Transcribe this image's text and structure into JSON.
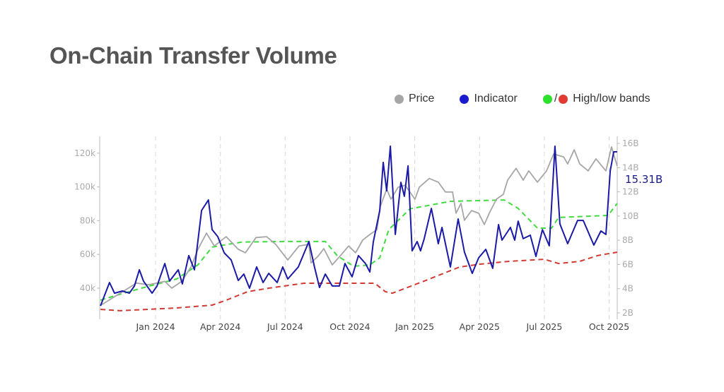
{
  "chart_data": {
    "type": "line",
    "title": "On-Chain Transfer Volume",
    "x_unit": "months since Jan 2024",
    "x_range": [
      -2.6,
      21.4
    ],
    "x_ticks": [
      {
        "t": 0,
        "label": "Jan 2024"
      },
      {
        "t": 3,
        "label": "Apr 2024"
      },
      {
        "t": 6,
        "label": "Jul 2024"
      },
      {
        "t": 9,
        "label": "Oct 2024"
      },
      {
        "t": 12,
        "label": "Jan 2025"
      },
      {
        "t": 15,
        "label": "Apr 2025"
      },
      {
        "t": 18,
        "label": "Jul 2025"
      },
      {
        "t": 21,
        "label": "Oct 2025"
      }
    ],
    "left_axis": {
      "unit": "USD",
      "range": [
        22,
        130
      ],
      "ticks": [
        {
          "v": 40,
          "label": "40k"
        },
        {
          "v": 60,
          "label": "60k"
        },
        {
          "v": 80,
          "label": "80k"
        },
        {
          "v": 100,
          "label": "100k"
        },
        {
          "v": 120,
          "label": "120k"
        }
      ]
    },
    "right_axis": {
      "unit": "B",
      "range": [
        1.6,
        17
      ],
      "ticks": [
        {
          "v": 2,
          "label": "2B"
        },
        {
          "v": 4,
          "label": "4B"
        },
        {
          "v": 6,
          "label": "6B"
        },
        {
          "v": 8,
          "label": "8B"
        },
        {
          "v": 10,
          "label": "10B"
        },
        {
          "v": 12,
          "label": "12B"
        },
        {
          "v": 14,
          "label": "14B"
        },
        {
          "v": 16,
          "label": "16B"
        }
      ]
    },
    "grid": "vertical dashed",
    "legend_position": "top-right",
    "legend": {
      "price": "Price",
      "indicator": "Indicator",
      "bands_sep": "/",
      "bands": "High/low bands"
    },
    "last_value_label": "15.31B",
    "colors": {
      "price": "#a6a6a6",
      "indicator": "#1a1aa6",
      "high": "#3fdc3f",
      "low": "#d23a32"
    },
    "series": [
      {
        "name": "Price",
        "axis": "left",
        "unit": "k USD",
        "points": [
          [
            -2.52,
            30
          ],
          [
            -2.06,
            33.7
          ],
          [
            -0.88,
            43
          ],
          [
            -0.33,
            42
          ],
          [
            0.43,
            44
          ],
          [
            0.75,
            40
          ],
          [
            1.21,
            44
          ],
          [
            1.64,
            52.5
          ],
          [
            1.96,
            63
          ],
          [
            2.36,
            72.6
          ],
          [
            2.72,
            65
          ],
          [
            3.27,
            70.5
          ],
          [
            3.83,
            63
          ],
          [
            4.16,
            61
          ],
          [
            4.65,
            70
          ],
          [
            5.14,
            70.5
          ],
          [
            5.56,
            66
          ],
          [
            6.12,
            56.7
          ],
          [
            6.64,
            65
          ],
          [
            7.1,
            66
          ],
          [
            7.2,
            55
          ],
          [
            7.53,
            59
          ],
          [
            7.79,
            63.4
          ],
          [
            8.18,
            53.8
          ],
          [
            8.61,
            60
          ],
          [
            8.94,
            65
          ],
          [
            9.26,
            61
          ],
          [
            9.59,
            68.5
          ],
          [
            9.92,
            71.8
          ],
          [
            10.25,
            74.7
          ],
          [
            10.41,
            88.5
          ],
          [
            10.7,
            98.6
          ],
          [
            10.9,
            92.7
          ],
          [
            11.23,
            99.8
          ],
          [
            11.55,
            101
          ],
          [
            12.01,
            92.7
          ],
          [
            12.21,
            99.8
          ],
          [
            12.67,
            105
          ],
          [
            13.09,
            102.8
          ],
          [
            13.42,
            97
          ],
          [
            13.75,
            97
          ],
          [
            13.91,
            84.4
          ],
          [
            14.14,
            90.2
          ],
          [
            14.3,
            80.2
          ],
          [
            14.63,
            86
          ],
          [
            14.96,
            84.4
          ],
          [
            15.22,
            77.7
          ],
          [
            15.45,
            84.4
          ],
          [
            15.78,
            92.7
          ],
          [
            16.1,
            95.6
          ],
          [
            16.3,
            104
          ],
          [
            16.69,
            111
          ],
          [
            17.02,
            104
          ],
          [
            17.28,
            109.5
          ],
          [
            17.68,
            102.8
          ],
          [
            18.1,
            109.5
          ],
          [
            18.43,
            119.5
          ],
          [
            18.89,
            117.8
          ],
          [
            19.08,
            113.6
          ],
          [
            19.38,
            122
          ],
          [
            19.64,
            113.6
          ],
          [
            20.03,
            109.5
          ],
          [
            20.39,
            116.6
          ],
          [
            20.85,
            109.5
          ],
          [
            21.11,
            123.7
          ],
          [
            21.37,
            112.4
          ]
        ]
      },
      {
        "name": "Indicator",
        "axis": "right",
        "unit": "B",
        "points": [
          [
            -2.55,
            2.58
          ],
          [
            -2.13,
            4.51
          ],
          [
            -1.9,
            3.63
          ],
          [
            -1.54,
            3.81
          ],
          [
            -1.21,
            3.63
          ],
          [
            -0.98,
            4.22
          ],
          [
            -0.75,
            5.56
          ],
          [
            -0.56,
            4.63
          ],
          [
            -0.16,
            3.63
          ],
          [
            0.07,
            4.22
          ],
          [
            0.43,
            6.08
          ],
          [
            0.65,
            4.63
          ],
          [
            1.05,
            5.56
          ],
          [
            1.24,
            4.39
          ],
          [
            1.54,
            6.73
          ],
          [
            1.8,
            5.56
          ],
          [
            2.13,
            10.46
          ],
          [
            2.45,
            11.33
          ],
          [
            2.62,
            8.88
          ],
          [
            2.88,
            8.3
          ],
          [
            3.18,
            6.96
          ],
          [
            3.5,
            6.38
          ],
          [
            3.83,
            4.68
          ],
          [
            4.09,
            5.21
          ],
          [
            4.35,
            4.04
          ],
          [
            4.68,
            5.79
          ],
          [
            4.98,
            4.51
          ],
          [
            5.24,
            5.27
          ],
          [
            5.63,
            4.51
          ],
          [
            5.89,
            5.79
          ],
          [
            6.12,
            4.8
          ],
          [
            6.61,
            5.79
          ],
          [
            7.1,
            7.89
          ],
          [
            7.36,
            5.79
          ],
          [
            7.59,
            4.1
          ],
          [
            7.86,
            5.21
          ],
          [
            8.18,
            4.22
          ],
          [
            8.51,
            4.22
          ],
          [
            8.77,
            6.08
          ],
          [
            9.1,
            4.98
          ],
          [
            9.39,
            6.73
          ],
          [
            9.72,
            6.08
          ],
          [
            9.92,
            5.38
          ],
          [
            10.08,
            7.83
          ],
          [
            10.38,
            10.46
          ],
          [
            10.54,
            14.43
          ],
          [
            10.7,
            12.09
          ],
          [
            10.87,
            15.77
          ],
          [
            11.1,
            8.48
          ],
          [
            11.36,
            12.79
          ],
          [
            11.52,
            11.63
          ],
          [
            11.69,
            14.14
          ],
          [
            11.88,
            7.13
          ],
          [
            12.11,
            7.89
          ],
          [
            12.27,
            7.13
          ],
          [
            12.44,
            8.13
          ],
          [
            12.77,
            10.63
          ],
          [
            13.09,
            7.72
          ],
          [
            13.26,
            9.06
          ],
          [
            13.65,
            5.79
          ],
          [
            14.01,
            9.76
          ],
          [
            14.3,
            7.02
          ],
          [
            14.66,
            5.27
          ],
          [
            14.96,
            6.55
          ],
          [
            15.29,
            7.25
          ],
          [
            15.61,
            5.68
          ],
          [
            15.88,
            9.29
          ],
          [
            16.04,
            8.01
          ],
          [
            16.43,
            9.06
          ],
          [
            16.63,
            8.01
          ],
          [
            16.79,
            9.58
          ],
          [
            17.02,
            8.13
          ],
          [
            17.35,
            8.42
          ],
          [
            17.61,
            6.67
          ],
          [
            17.91,
            8.88
          ],
          [
            18.23,
            7.54
          ],
          [
            18.49,
            15.77
          ],
          [
            18.72,
            9.35
          ],
          [
            19.08,
            7.72
          ],
          [
            19.54,
            9.64
          ],
          [
            19.8,
            9.64
          ],
          [
            20.29,
            7.6
          ],
          [
            20.62,
            8.77
          ],
          [
            20.85,
            8.48
          ],
          [
            21.05,
            13.73
          ],
          [
            21.21,
            15.3
          ],
          [
            21.37,
            15.31
          ]
        ]
      },
      {
        "name": "High band",
        "axis": "right",
        "unit": "B",
        "points": [
          [
            -2.55,
            3.05
          ],
          [
            -1.8,
            3.46
          ],
          [
            -0.65,
            4.04
          ],
          [
            0.98,
            4.8
          ],
          [
            1.96,
            5.97
          ],
          [
            2.62,
            7.43
          ],
          [
            2.95,
            7.54
          ],
          [
            4.0,
            7.85
          ],
          [
            5.89,
            7.9
          ],
          [
            7.86,
            7.9
          ],
          [
            8.41,
            6.73
          ],
          [
            9.17,
            5.85
          ],
          [
            9.92,
            5.97
          ],
          [
            10.38,
            6.55
          ],
          [
            10.8,
            8.88
          ],
          [
            11.23,
            9.64
          ],
          [
            11.78,
            10.6
          ],
          [
            12.44,
            10.81
          ],
          [
            13.65,
            11.22
          ],
          [
            16.14,
            11.33
          ],
          [
            16.79,
            10.63
          ],
          [
            17.68,
            9.0
          ],
          [
            18.33,
            9.0
          ],
          [
            18.66,
            9.88
          ],
          [
            20.95,
            10.05
          ],
          [
            21.37,
            11.04
          ]
        ]
      },
      {
        "name": "Low band",
        "axis": "right",
        "unit": "B",
        "points": [
          [
            -2.55,
            2.29
          ],
          [
            -1.64,
            2.18
          ],
          [
            0.98,
            2.41
          ],
          [
            2.62,
            2.64
          ],
          [
            3.27,
            3.05
          ],
          [
            4.26,
            3.75
          ],
          [
            5.24,
            4.04
          ],
          [
            6.87,
            4.45
          ],
          [
            8.51,
            4.45
          ],
          [
            10.15,
            4.45
          ],
          [
            10.64,
            3.75
          ],
          [
            10.97,
            3.63
          ],
          [
            12.44,
            4.63
          ],
          [
            14.08,
            5.79
          ],
          [
            15.06,
            6.03
          ],
          [
            16.37,
            6.26
          ],
          [
            18.0,
            6.43
          ],
          [
            18.66,
            6.08
          ],
          [
            19.64,
            6.26
          ],
          [
            20.46,
            6.73
          ],
          [
            21.37,
            7.02
          ]
        ]
      }
    ]
  }
}
